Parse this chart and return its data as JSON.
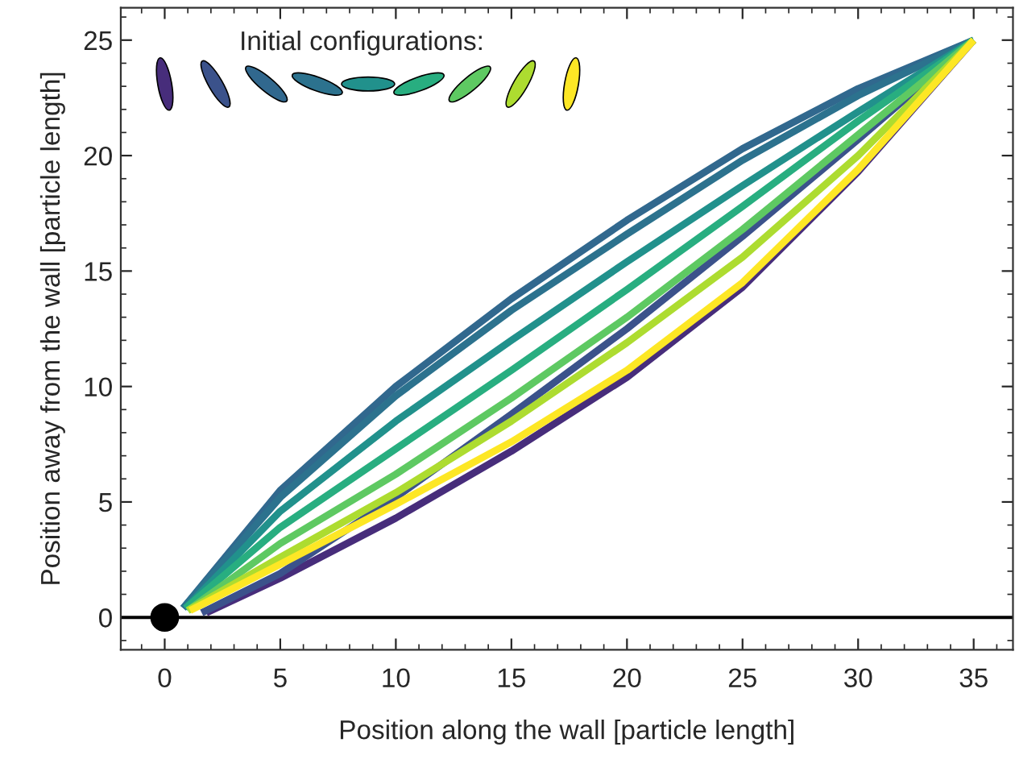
{
  "chart_data": {
    "type": "line",
    "xlabel": "Position along the wall [particle length]",
    "ylabel": "Position away from the wall [particle length]",
    "annotations": [
      "Initial configurations:"
    ],
    "xlim": [
      -1.9,
      36.7
    ],
    "ylim": [
      -1.4,
      26.4
    ],
    "xticks": [
      0,
      5,
      10,
      15,
      20,
      25,
      30,
      35
    ],
    "yticks": [
      0,
      5,
      10,
      15,
      20,
      25
    ],
    "grid": false,
    "marker": "none",
    "line_style": "solid",
    "ref_lines": [
      {
        "axis": "y",
        "value": 0,
        "color": "#000000"
      }
    ],
    "series": [
      {
        "color": "#472d7b",
        "x": [
          1.8,
          5,
          10,
          15,
          20,
          25,
          30,
          35
        ],
        "values": [
          0.2,
          1.7,
          4.3,
          7.2,
          10.4,
          14.3,
          19.3,
          25
        ]
      },
      {
        "color": "#3b528b",
        "x": [
          1.6,
          5,
          10,
          15,
          20,
          25,
          30,
          35
        ],
        "values": [
          0.2,
          1.9,
          5.2,
          8.8,
          12.5,
          16.5,
          20.7,
          25
        ]
      },
      {
        "color": "#31688e",
        "x": [
          0.8,
          5,
          10,
          15,
          20,
          25,
          30,
          35
        ],
        "values": [
          0.4,
          5.5,
          10.0,
          13.8,
          17.2,
          20.3,
          22.9,
          25
        ]
      },
      {
        "color": "#2c728e",
        "x": [
          0.8,
          5,
          10,
          15,
          20,
          25,
          30,
          35
        ],
        "values": [
          0.4,
          5.2,
          9.6,
          13.3,
          16.6,
          19.8,
          22.6,
          25
        ]
      },
      {
        "color": "#21918c",
        "x": [
          0.9,
          5,
          10,
          15,
          20,
          25,
          30,
          35
        ],
        "values": [
          0.4,
          4.6,
          8.5,
          12.0,
          15.4,
          18.7,
          21.9,
          25
        ]
      },
      {
        "color": "#28ae80",
        "x": [
          0.9,
          5,
          10,
          15,
          20,
          25,
          30,
          35
        ],
        "values": [
          0.4,
          3.9,
          7.3,
          10.7,
          14.2,
          17.8,
          21.5,
          25
        ]
      },
      {
        "color": "#5ec962",
        "x": [
          1.0,
          5,
          10,
          15,
          20,
          25,
          30,
          35
        ],
        "values": [
          0.3,
          3.2,
          6.2,
          9.5,
          13.0,
          16.8,
          20.9,
          25
        ]
      },
      {
        "color": "#addc30",
        "x": [
          1.0,
          5,
          10,
          15,
          20,
          25,
          30,
          35
        ],
        "values": [
          0.3,
          2.6,
          5.4,
          8.5,
          11.9,
          15.6,
          20.0,
          25
        ]
      },
      {
        "color": "#fde725",
        "x": [
          1.1,
          5,
          10,
          15,
          20,
          25,
          30,
          35
        ],
        "values": [
          0.3,
          2.3,
          4.9,
          7.6,
          10.7,
          14.5,
          19.4,
          25
        ]
      },
      {
        "type": "scatter",
        "color": "#000000",
        "x": [
          0
        ],
        "values": [
          0
        ],
        "marker": "circle"
      }
    ]
  }
}
